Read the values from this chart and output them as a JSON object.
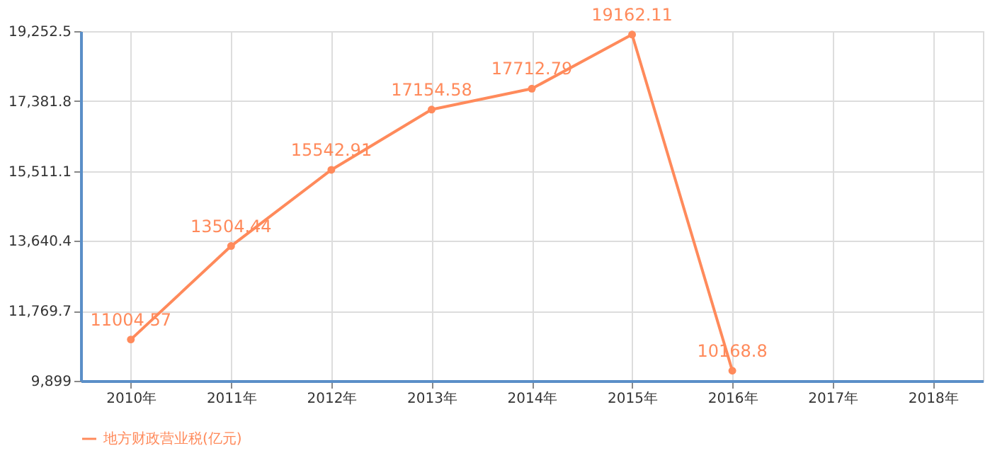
{
  "chart_data": {
    "type": "line",
    "categories": [
      "2010年",
      "2011年",
      "2012年",
      "2013年",
      "2014年",
      "2015年",
      "2016年",
      "2017年",
      "2018年"
    ],
    "series": [
      {
        "name": "地方财政营业税(亿元)",
        "color": "#ff8a5b",
        "values": [
          11004.57,
          13504.44,
          15542.91,
          17154.58,
          17712.79,
          19162.11,
          10168.8,
          null,
          null
        ]
      }
    ],
    "ylim": [
      9899,
      19252.5
    ],
    "yticks": [
      {
        "value": 9899,
        "label": "9,899"
      },
      {
        "value": 11769.7,
        "label": "11,769.7"
      },
      {
        "value": 13640.4,
        "label": "13,640.4"
      },
      {
        "value": 15511.1,
        "label": "15,511.1"
      },
      {
        "value": 17381.8,
        "label": "17,381.8"
      },
      {
        "value": 19252.5,
        "label": "19,252.5"
      }
    ],
    "grid": true,
    "legend": "bottom",
    "marker": "circle",
    "line_style": "solid",
    "data_labels": true
  }
}
